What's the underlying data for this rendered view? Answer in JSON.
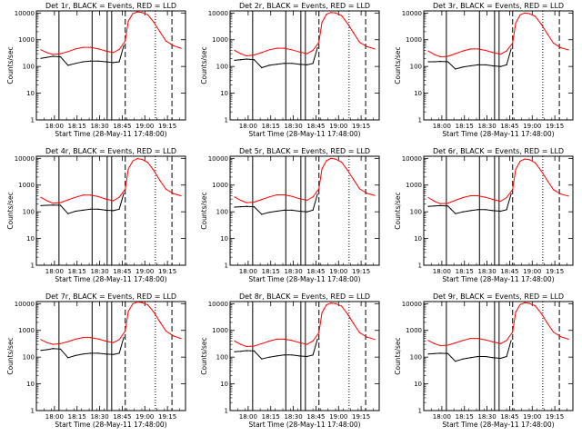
{
  "figure": {
    "colors": {
      "events": "#000000",
      "lld": "#ff0000",
      "axes": "#000000"
    },
    "ylabel": "Counts/sec",
    "xlabel": "Start Time (28-May-11 17:48:00)"
  },
  "chart_data": [
    {
      "type": "line",
      "title": "Det 1r, BLACK = Events, RED = LLD",
      "xlabel": "Start Time (28-May-11 17:48:00)",
      "ylabel": "Counts/sec",
      "yscale": "log",
      "ylim": [
        1,
        12000
      ],
      "xlim": [
        "17:48",
        "19:27"
      ],
      "x_ticks": [
        "18:00",
        "18:15",
        "18:30",
        "18:45",
        "19:00",
        "19:15"
      ],
      "y_ticks": [
        "1",
        "10",
        "100",
        "1000",
        "10000"
      ],
      "series": [
        {
          "x": [
            "17:51",
            "17:55",
            "17:59",
            "18:04",
            "18:09",
            "18:14",
            "18:19",
            "18:24",
            "18:29",
            "18:34",
            "18:39",
            "18:43",
            "18:47",
            "18:49",
            "18:52",
            "18:55",
            "18:58",
            "19:02",
            "19:06",
            "19:10",
            "19:14",
            "19:19",
            "19:24"
          ],
          "values": [
            420,
            330,
            280,
            300,
            360,
            450,
            520,
            520,
            460,
            380,
            330,
            430,
            900,
            5000,
            9500,
            11000,
            10500,
            8500,
            4500,
            2000,
            900,
            600,
            480
          ]
        },
        {
          "x": [
            "17:51",
            "17:55",
            "17:59",
            "18:04",
            "18:09",
            "18:14",
            "18:19",
            "18:24",
            "18:29",
            "18:34",
            "18:39",
            "18:43",
            "18:46"
          ],
          "values": [
            200,
            220,
            240,
            230,
            110,
            130,
            150,
            160,
            160,
            150,
            140,
            150,
            600
          ]
        }
      ]
    },
    {
      "type": "line",
      "title": "Det 2r, BLACK = Events, RED = LLD",
      "xlabel": "Start Time (28-May-11 17:48:00)",
      "ylabel": "Counts/sec",
      "yscale": "log",
      "ylim": [
        1,
        12000
      ],
      "xlim": [
        "17:48",
        "19:27"
      ],
      "x_ticks": [
        "18:00",
        "18:15",
        "18:30",
        "18:45",
        "19:00",
        "19:15"
      ],
      "y_ticks": [
        "1",
        "10",
        "100",
        "1000",
        "10000"
      ],
      "series": [
        {
          "x": [
            "17:51",
            "17:55",
            "17:59",
            "18:04",
            "18:09",
            "18:14",
            "18:19",
            "18:24",
            "18:29",
            "18:34",
            "18:39",
            "18:43",
            "18:47",
            "18:49",
            "18:52",
            "18:55",
            "18:58",
            "19:02",
            "19:06",
            "19:10",
            "19:14",
            "19:19",
            "19:24"
          ],
          "values": [
            400,
            300,
            250,
            270,
            330,
            420,
            480,
            480,
            420,
            350,
            300,
            400,
            800,
            4500,
            9000,
            10500,
            10000,
            8000,
            4000,
            1800,
            800,
            550,
            450
          ]
        },
        {
          "x": [
            "17:51",
            "17:55",
            "17:59",
            "18:04",
            "18:09",
            "18:14",
            "18:19",
            "18:24",
            "18:29",
            "18:34",
            "18:39",
            "18:43",
            "18:46"
          ],
          "values": [
            170,
            180,
            190,
            180,
            90,
            110,
            120,
            130,
            130,
            120,
            115,
            130,
            500
          ]
        }
      ]
    },
    {
      "type": "line",
      "title": "Det 3r, BLACK = Events, RED = LLD",
      "xlabel": "Start Time (28-May-11 17:48:00)",
      "ylabel": "Counts/sec",
      "yscale": "log",
      "ylim": [
        1,
        12000
      ],
      "xlim": [
        "17:48",
        "19:27"
      ],
      "x_ticks": [
        "18:00",
        "18:15",
        "18:30",
        "18:45",
        "19:00",
        "19:15"
      ],
      "y_ticks": [
        "1",
        "10",
        "100",
        "1000",
        "10000"
      ],
      "series": [
        {
          "x": [
            "17:51",
            "17:55",
            "17:59",
            "18:04",
            "18:09",
            "18:14",
            "18:19",
            "18:24",
            "18:29",
            "18:34",
            "18:39",
            "18:43",
            "18:47",
            "18:49",
            "18:52",
            "18:55",
            "18:58",
            "19:02",
            "19:06",
            "19:10",
            "19:14",
            "19:19",
            "19:24"
          ],
          "values": [
            380,
            280,
            230,
            240,
            300,
            380,
            450,
            450,
            400,
            330,
            290,
            380,
            750,
            4200,
            8500,
            10000,
            9500,
            7500,
            3800,
            1700,
            750,
            500,
            420
          ]
        },
        {
          "x": [
            "17:51",
            "17:55",
            "17:59",
            "18:04",
            "18:09",
            "18:14",
            "18:19",
            "18:24",
            "18:29",
            "18:34",
            "18:39",
            "18:43",
            "18:46"
          ],
          "values": [
            150,
            150,
            155,
            150,
            80,
            95,
            105,
            115,
            115,
            105,
            100,
            115,
            450
          ]
        }
      ]
    },
    {
      "type": "line",
      "title": "Det 4r, BLACK = Events, RED = LLD",
      "xlabel": "Start Time (28-May-11 17:48:00)",
      "ylabel": "Counts/sec",
      "yscale": "log",
      "ylim": [
        1,
        12000
      ],
      "xlim": [
        "17:48",
        "19:27"
      ],
      "x_ticks": [
        "18:00",
        "18:15",
        "18:30",
        "18:45",
        "19:00",
        "19:15"
      ],
      "y_ticks": [
        "1",
        "10",
        "100",
        "1000",
        "10000"
      ],
      "series": [
        {
          "x": [
            "17:51",
            "17:55",
            "17:59",
            "18:04",
            "18:09",
            "18:14",
            "18:19",
            "18:24",
            "18:29",
            "18:34",
            "18:39",
            "18:43",
            "18:47",
            "18:49",
            "18:52",
            "18:55",
            "18:58",
            "19:02",
            "19:06",
            "19:10",
            "19:14",
            "19:19",
            "19:24"
          ],
          "values": [
            350,
            260,
            210,
            220,
            280,
            350,
            420,
            420,
            370,
            300,
            260,
            350,
            700,
            4000,
            8000,
            9800,
            9200,
            7000,
            3500,
            1500,
            700,
            480,
            400
          ]
        },
        {
          "x": [
            "17:51",
            "17:55",
            "17:59",
            "18:04",
            "18:09",
            "18:14",
            "18:19",
            "18:24",
            "18:29",
            "18:34",
            "18:39",
            "18:43",
            "18:46"
          ],
          "values": [
            170,
            175,
            180,
            175,
            85,
            105,
            115,
            125,
            125,
            115,
            110,
            125,
            480
          ]
        }
      ]
    },
    {
      "type": "line",
      "title": "Det 5r, BLACK = Events, RED = LLD",
      "xlabel": "Start Time (28-May-11 17:48:00)",
      "ylabel": "Counts/sec",
      "yscale": "log",
      "ylim": [
        1,
        12000
      ],
      "xlim": [
        "17:48",
        "19:27"
      ],
      "x_ticks": [
        "18:00",
        "18:15",
        "18:30",
        "18:45",
        "19:00",
        "19:15"
      ],
      "y_ticks": [
        "1",
        "10",
        "100",
        "1000",
        "10000"
      ],
      "series": [
        {
          "x": [
            "17:51",
            "17:55",
            "17:59",
            "18:04",
            "18:09",
            "18:14",
            "18:19",
            "18:24",
            "18:29",
            "18:34",
            "18:39",
            "18:43",
            "18:47",
            "18:49",
            "18:52",
            "18:55",
            "18:58",
            "19:02",
            "19:06",
            "19:10",
            "19:14",
            "19:19",
            "19:24"
          ],
          "values": [
            360,
            270,
            220,
            230,
            290,
            360,
            430,
            430,
            380,
            310,
            270,
            360,
            720,
            4100,
            8200,
            10000,
            9400,
            7200,
            3600,
            1600,
            720,
            490,
            410
          ]
        },
        {
          "x": [
            "17:51",
            "17:55",
            "17:59",
            "18:04",
            "18:09",
            "18:14",
            "18:19",
            "18:24",
            "18:29",
            "18:34",
            "18:39",
            "18:43",
            "18:46"
          ],
          "values": [
            150,
            155,
            160,
            155,
            80,
            95,
            105,
            115,
            115,
            105,
            100,
            115,
            450
          ]
        }
      ]
    },
    {
      "type": "line",
      "title": "Det 6r, BLACK = Events, RED = LLD",
      "xlabel": "Start Time (28-May-11 17:48:00)",
      "ylabel": "Counts/sec",
      "yscale": "log",
      "ylim": [
        1,
        12000
      ],
      "xlim": [
        "17:48",
        "19:27"
      ],
      "x_ticks": [
        "18:00",
        "18:15",
        "18:30",
        "18:45",
        "19:00",
        "19:15"
      ],
      "y_ticks": [
        "1",
        "10",
        "100",
        "1000",
        "10000"
      ],
      "series": [
        {
          "x": [
            "17:51",
            "17:55",
            "17:59",
            "18:04",
            "18:09",
            "18:14",
            "18:19",
            "18:24",
            "18:29",
            "18:34",
            "18:39",
            "18:43",
            "18:47",
            "18:49",
            "18:52",
            "18:55",
            "18:58",
            "19:02",
            "19:06",
            "19:10",
            "19:14",
            "19:19",
            "19:24"
          ],
          "values": [
            340,
            250,
            200,
            210,
            270,
            340,
            400,
            400,
            350,
            290,
            250,
            340,
            680,
            3900,
            7800,
            9500,
            9000,
            6800,
            3400,
            1500,
            680,
            460,
            390
          ]
        },
        {
          "x": [
            "17:51",
            "17:55",
            "17:59",
            "18:04",
            "18:09",
            "18:14",
            "18:19",
            "18:24",
            "18:29",
            "18:34",
            "18:39",
            "18:43",
            "18:46"
          ],
          "values": [
            160,
            165,
            170,
            165,
            85,
            100,
            110,
            120,
            120,
            110,
            105,
            120,
            470
          ]
        }
      ]
    },
    {
      "type": "line",
      "title": "Det 7r, BLACK = Events, RED = LLD",
      "xlabel": "Start Time (28-May-11 17:48:00)",
      "ylabel": "Counts/sec",
      "yscale": "log",
      "ylim": [
        1,
        12000
      ],
      "xlim": [
        "17:48",
        "19:27"
      ],
      "x_ticks": [
        "18:00",
        "18:15",
        "18:30",
        "18:45",
        "19:00",
        "19:15"
      ],
      "y_ticks": [
        "1",
        "10",
        "100",
        "1000",
        "10000"
      ],
      "series": [
        {
          "x": [
            "17:51",
            "17:55",
            "17:59",
            "18:04",
            "18:09",
            "18:14",
            "18:19",
            "18:24",
            "18:29",
            "18:34",
            "18:39",
            "18:43",
            "18:47",
            "18:49",
            "18:52",
            "18:55",
            "18:58",
            "19:02",
            "19:06",
            "19:10",
            "19:14",
            "19:19",
            "19:24"
          ],
          "values": [
            450,
            350,
            300,
            320,
            380,
            470,
            540,
            540,
            480,
            400,
            350,
            450,
            950,
            5200,
            9800,
            11500,
            11000,
            9000,
            4800,
            2100,
            950,
            620,
            500
          ]
        },
        {
          "x": [
            "17:51",
            "17:55",
            "17:59",
            "18:04",
            "18:09",
            "18:14",
            "18:19",
            "18:24",
            "18:29",
            "18:34",
            "18:39",
            "18:43",
            "18:46"
          ],
          "values": [
            180,
            190,
            210,
            200,
            95,
            115,
            130,
            140,
            140,
            130,
            125,
            140,
            550
          ]
        }
      ]
    },
    {
      "type": "line",
      "title": "Det 8r, BLACK = Events, RED = LLD",
      "xlabel": "Start Time (28-May-11 17:48:00)",
      "ylabel": "Counts/sec",
      "yscale": "log",
      "ylim": [
        1,
        12000
      ],
      "xlim": [
        "17:48",
        "19:27"
      ],
      "x_ticks": [
        "18:00",
        "18:15",
        "18:30",
        "18:45",
        "19:00",
        "19:15"
      ],
      "y_ticks": [
        "1",
        "10",
        "100",
        "1000",
        "10000"
      ],
      "series": [
        {
          "x": [
            "17:51",
            "17:55",
            "17:59",
            "18:04",
            "18:09",
            "18:14",
            "18:19",
            "18:24",
            "18:29",
            "18:34",
            "18:39",
            "18:43",
            "18:47",
            "18:49",
            "18:52",
            "18:55",
            "18:58",
            "19:02",
            "19:06",
            "19:10",
            "19:14",
            "19:19",
            "19:24"
          ],
          "values": [
            400,
            300,
            250,
            260,
            320,
            400,
            470,
            470,
            420,
            350,
            300,
            400,
            820,
            4600,
            9100,
            10600,
            10100,
            8100,
            4100,
            1800,
            820,
            560,
            460
          ]
        },
        {
          "x": [
            "17:51",
            "17:55",
            "17:59",
            "18:04",
            "18:09",
            "18:14",
            "18:19",
            "18:24",
            "18:29",
            "18:34",
            "18:39",
            "18:43",
            "18:46"
          ],
          "values": [
            160,
            165,
            175,
            170,
            85,
            100,
            110,
            120,
            120,
            110,
            105,
            120,
            470
          ]
        }
      ]
    },
    {
      "type": "line",
      "title": "Det 9r, BLACK = Events, RED = LLD",
      "xlabel": "Start Time (28-May-11 17:48:00)",
      "ylabel": "Counts/sec",
      "yscale": "log",
      "ylim": [
        1,
        12000
      ],
      "xlim": [
        "17:48",
        "19:27"
      ],
      "x_ticks": [
        "18:00",
        "18:15",
        "18:30",
        "18:45",
        "19:00",
        "19:15"
      ],
      "y_ticks": [
        "1",
        "10",
        "100",
        "1000",
        "10000"
      ],
      "series": [
        {
          "x": [
            "17:51",
            "17:55",
            "17:59",
            "18:04",
            "18:09",
            "18:14",
            "18:19",
            "18:24",
            "18:29",
            "18:34",
            "18:39",
            "18:43",
            "18:47",
            "18:49",
            "18:52",
            "18:55",
            "18:58",
            "19:02",
            "19:06",
            "19:10",
            "19:14",
            "19:19",
            "19:24"
          ],
          "values": [
            420,
            320,
            270,
            280,
            340,
            420,
            500,
            500,
            440,
            370,
            320,
            420,
            870,
            4800,
            9300,
            10800,
            10300,
            8300,
            4300,
            1900,
            870,
            580,
            470
          ]
        },
        {
          "x": [
            "17:51",
            "17:55",
            "17:59",
            "18:04",
            "18:09",
            "18:14",
            "18:19",
            "18:24",
            "18:29",
            "18:34",
            "18:39",
            "18:43",
            "18:46"
          ],
          "values": [
            130,
            135,
            140,
            135,
            70,
            85,
            95,
            105,
            105,
            95,
            90,
            105,
            420
          ]
        }
      ]
    }
  ]
}
